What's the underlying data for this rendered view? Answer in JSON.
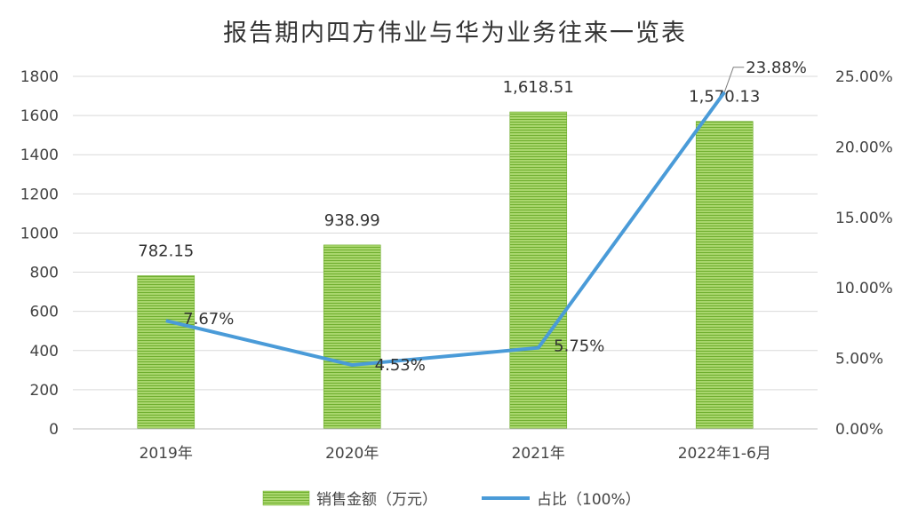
{
  "chart_data": {
    "type": "bar+line",
    "title": "报告期内四方伟业与华为业务往来一览表",
    "categories": [
      "2019年",
      "2020年",
      "2021年",
      "2022年1-6月"
    ],
    "series": [
      {
        "name": "销售金额（万元）",
        "type": "bar",
        "axis": "left",
        "values": [
          782.15,
          938.99,
          1618.51,
          1570.13
        ],
        "labels": [
          "782.15",
          "938.99",
          "1,618.51",
          "1,570.13"
        ],
        "color": "#8cc63f"
      },
      {
        "name": "占比（100%）",
        "type": "line",
        "axis": "right",
        "values": [
          7.67,
          4.53,
          5.75,
          23.88
        ],
        "labels": [
          "7.67%",
          "4.53%",
          "5.75%",
          "23.88%"
        ],
        "color": "#4a9bd8"
      }
    ],
    "y_left": {
      "min": 0,
      "max": 1800,
      "ticks": [
        0,
        200,
        400,
        600,
        800,
        1000,
        1200,
        1400,
        1600,
        1800
      ],
      "tick_labels": [
        "0",
        "200",
        "400",
        "600",
        "800",
        "1000",
        "1200",
        "1400",
        "1600",
        "1800"
      ]
    },
    "y_right": {
      "min": 0,
      "max": 25,
      "ticks": [
        0,
        5,
        10,
        15,
        20,
        25
      ],
      "tick_labels": [
        "0.00%",
        "5.00%",
        "10.00%",
        "15.00%",
        "20.00%",
        "25.00%"
      ]
    },
    "grid": true,
    "legend_position": "bottom"
  }
}
